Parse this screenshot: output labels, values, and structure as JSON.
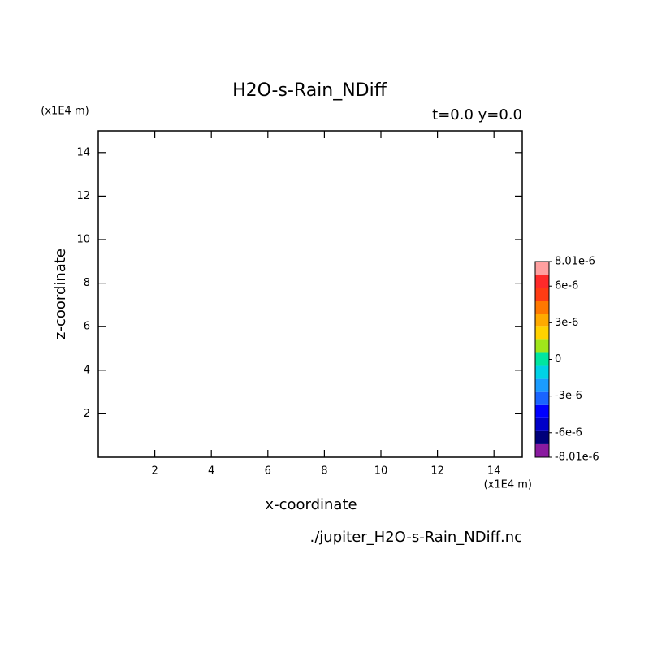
{
  "chart_data": {
    "type": "contour",
    "title": "H2O-s-Rain_NDiff",
    "subtitle": "t=0.0 y=0.0",
    "x_label": "x-coordinate",
    "y_label": "z-coordinate",
    "x_unit": "(x1E4 m)",
    "y_unit": "(x1E4 m)",
    "source": "./jupiter_H2O-s-Rain_NDiff.nc",
    "xlim": [
      0,
      15
    ],
    "xticks": [
      2,
      4,
      6,
      8,
      10,
      12,
      14
    ],
    "ylim": [
      0,
      15
    ],
    "yticks": [
      2,
      4,
      6,
      8,
      10,
      12,
      14
    ],
    "colorbar": {
      "lim": [
        -8.01e-06,
        8.01e-06
      ],
      "ticks": [
        {
          "value": 8.01e-06,
          "label": "8.01e-6"
        },
        {
          "value": 6e-06,
          "label": "6e-6"
        },
        {
          "value": 3e-06,
          "label": "3e-6"
        },
        0,
        {
          "value": -3e-06,
          "label": "-3e-6"
        },
        {
          "value": -6e-06,
          "label": "-6e-6"
        },
        {
          "value": -8.01e-06,
          "label": "-8.01e-6"
        }
      ],
      "colors": [
        "#8a1aa0",
        "#00007a",
        "#0000c8",
        "#0000ff",
        "#1a64ff",
        "#1a9cff",
        "#00d2e6",
        "#00e6a0",
        "#a0e61a",
        "#ffd200",
        "#ffaa00",
        "#ff7800",
        "#ff3c14",
        "#ff2a2a",
        "#ffa0a0"
      ]
    }
  }
}
